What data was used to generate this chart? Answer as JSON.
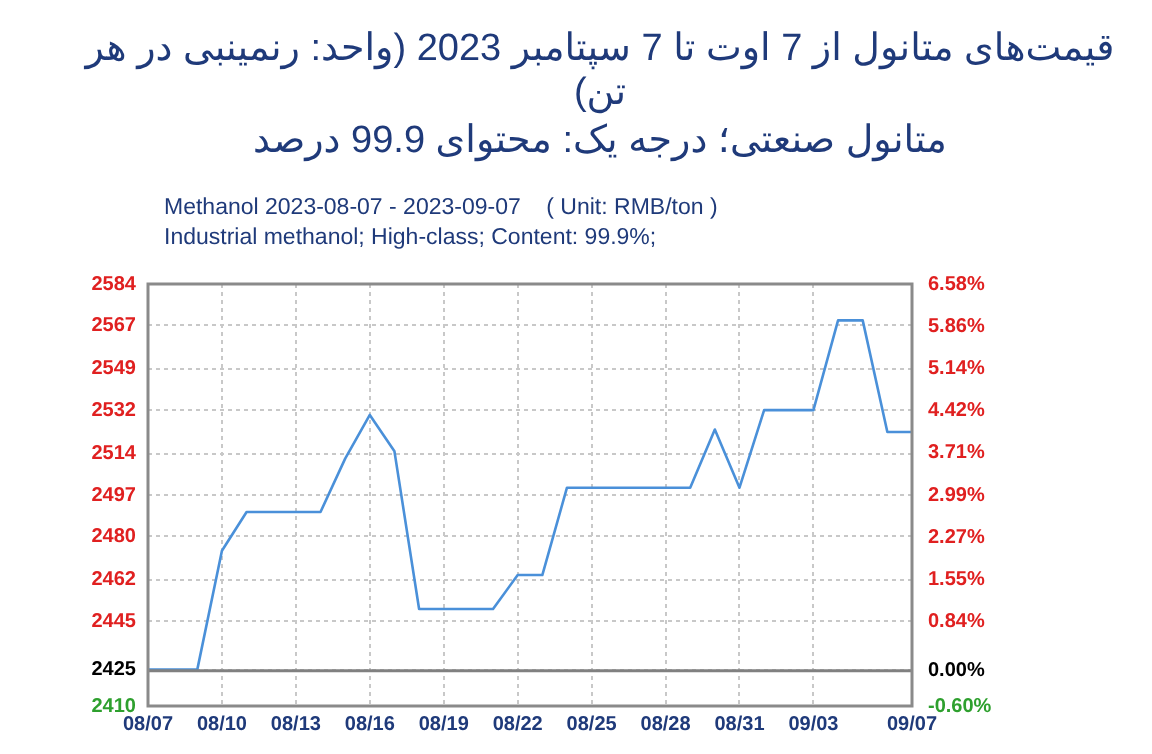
{
  "chart_data": {
    "type": "line",
    "title": "قیمت‌های متانول از 7 اوت تا 7 سپتامبر 2023 (واحد: رنمینبی در هر تن)",
    "subtitle": "متانول صنعتی؛ درجه یک: محتوای 99.9 درصد",
    "annotations": [
      "Methanol 2023-08-07 - 2023-09-07    ( Unit: RMB/ton )",
      "Industrial methanol; High-class; Content: 99.9%;"
    ],
    "x": [
      "2023-08-07",
      "2023-08-09",
      "2023-08-10",
      "2023-08-11",
      "2023-08-14",
      "2023-08-15",
      "2023-08-16",
      "2023-08-17",
      "2023-08-18",
      "2023-08-21",
      "2023-08-22",
      "2023-08-23",
      "2023-08-24",
      "2023-08-29",
      "2023-08-30",
      "2023-08-31",
      "2023-09-01",
      "2023-09-03",
      "2023-09-04",
      "2023-09-05",
      "2023-09-06",
      "2023-09-07"
    ],
    "series": [
      {
        "color": "#4a90d9",
        "values": [
          2425,
          2425,
          2474,
          2490,
          2490,
          2512,
          2530,
          2515,
          2450,
          2450,
          2464,
          2464,
          2500,
          2500,
          2524,
          2500,
          2532,
          2532,
          2569,
          2569,
          2523,
          2523
        ]
      }
    ],
    "xlim": [
      "2023-08-07",
      "2023-09-07"
    ],
    "xticks": [
      {
        "value": "2023-08-07",
        "label": "08/07"
      },
      {
        "value": "2023-08-10",
        "label": "08/10"
      },
      {
        "value": "2023-08-13",
        "label": "08/13"
      },
      {
        "value": "2023-08-16",
        "label": "08/16"
      },
      {
        "value": "2023-08-19",
        "label": "08/19"
      },
      {
        "value": "2023-08-22",
        "label": "08/22"
      },
      {
        "value": "2023-08-25",
        "label": "08/25"
      },
      {
        "value": "2023-08-28",
        "label": "08/28"
      },
      {
        "value": "2023-08-31",
        "label": "08/31"
      },
      {
        "value": "2023-09-03",
        "label": "09/03"
      },
      {
        "value": "2023-09-07",
        "label": "09/07"
      }
    ],
    "ylim": [
      2410,
      2584
    ],
    "yticks": [
      2410,
      2425,
      2445,
      2462,
      2480,
      2497,
      2514,
      2532,
      2549,
      2567,
      2584
    ],
    "y2lim": [
      -0.6,
      6.58
    ],
    "y2ticks": [
      {
        "value": -0.6,
        "label": "-0.60%"
      },
      {
        "value": 0,
        "label": "0.00%"
      },
      {
        "value": 0.84,
        "label": "0.84%"
      },
      {
        "value": 1.55,
        "label": "1.55%"
      },
      {
        "value": 2.27,
        "label": "2.27%"
      },
      {
        "value": 2.99,
        "label": "2.99%"
      },
      {
        "value": 3.71,
        "label": "3.71%"
      },
      {
        "value": 4.42,
        "label": "4.42%"
      },
      {
        "value": 5.14,
        "label": "5.14%"
      },
      {
        "value": 5.86,
        "label": "5.86%"
      },
      {
        "value": 6.58,
        "label": "6.58%"
      }
    ],
    "ref_lines": [
      {
        "axis": "y2",
        "value": 0,
        "color": "#808080"
      }
    ],
    "grid": true,
    "legend": false,
    "marker": "none",
    "line_style": "solid"
  }
}
